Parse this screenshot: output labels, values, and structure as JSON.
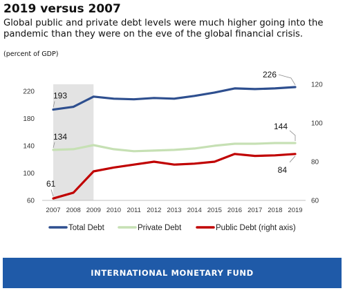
{
  "title": "2019 versus 2007",
  "subtitle": "Global public and private debt levels were much higher going into the pandemic than they were on the eve of the global financial crisis.",
  "units": "(percent of GDP)",
  "footer": "INTERNATIONAL MONETARY FUND",
  "chart_data": {
    "type": "line",
    "x": [
      "2007",
      "2008",
      "2009",
      "2010",
      "2011",
      "2012",
      "2013",
      "2014",
      "2015",
      "2016",
      "2017",
      "2018",
      "2019"
    ],
    "left_axis": {
      "ylim": [
        60,
        230
      ],
      "ticks": [
        "60",
        "100",
        "140",
        "180",
        "220"
      ]
    },
    "right_axis": {
      "ylim": [
        60,
        120
      ],
      "ticks": [
        "60",
        "80",
        "100",
        "120"
      ]
    },
    "shaded_period": [
      "2007",
      "2009"
    ],
    "series": [
      {
        "name": "Total Debt",
        "axis": "left",
        "color": "#2e4f8f",
        "values": [
          193,
          197,
          212,
          209,
          208,
          210,
          209,
          213,
          218,
          224,
          223,
          224,
          226
        ]
      },
      {
        "name": "Private Debt",
        "axis": "left",
        "color": "#c6e0b4",
        "values": [
          134,
          135,
          141,
          135,
          132,
          133,
          134,
          136,
          140,
          143,
          143,
          144,
          144
        ]
      },
      {
        "name": "Public Debt (right axis)",
        "axis": "right",
        "color": "#c00000",
        "values": [
          61,
          64,
          75,
          77,
          78.5,
          80,
          78.5,
          79,
          80,
          84,
          83,
          83.3,
          84
        ]
      }
    ],
    "annotations": [
      {
        "text": "193",
        "series": "Total Debt",
        "x": "2007"
      },
      {
        "text": "134",
        "series": "Private Debt",
        "x": "2007"
      },
      {
        "text": "61",
        "series": "Public Debt (right axis)",
        "x": "2007"
      },
      {
        "text": "226",
        "series": "Total Debt",
        "x": "2019"
      },
      {
        "text": "144",
        "series": "Private Debt",
        "x": "2019"
      },
      {
        "text": "84",
        "series": "Public Debt (right axis)",
        "x": "2019"
      }
    ],
    "legend_position": "bottom"
  }
}
